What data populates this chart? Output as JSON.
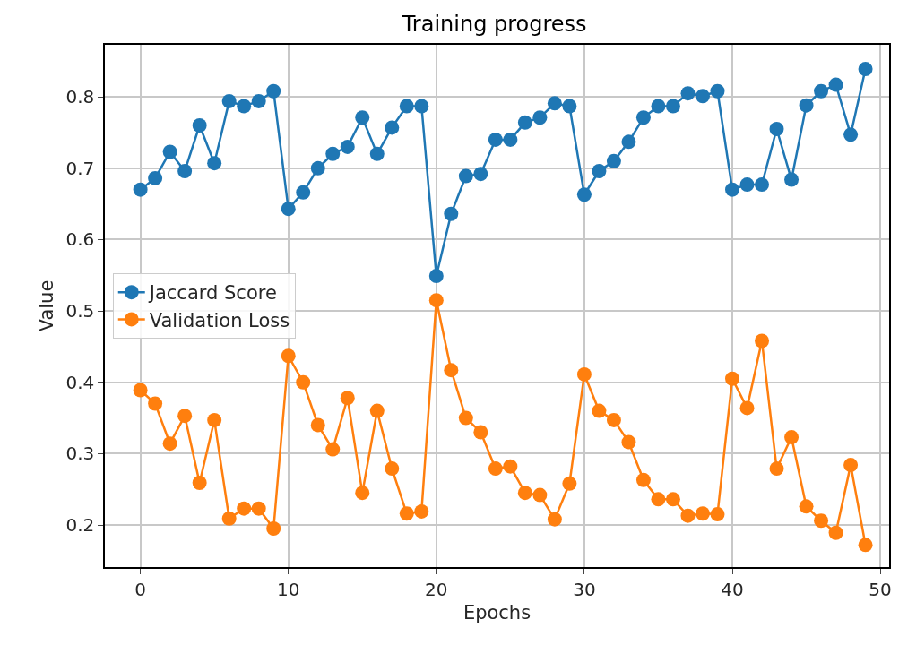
{
  "chart_data": {
    "type": "line",
    "title": "Training progress",
    "xlabel": "Epochs",
    "ylabel": "Value",
    "x": [
      0,
      1,
      2,
      3,
      4,
      5,
      6,
      7,
      8,
      9,
      10,
      11,
      12,
      13,
      14,
      15,
      16,
      17,
      18,
      19,
      20,
      21,
      22,
      23,
      24,
      25,
      26,
      27,
      28,
      29,
      30,
      31,
      32,
      33,
      34,
      35,
      36,
      37,
      38,
      39,
      40,
      41,
      42,
      43,
      44,
      45,
      46,
      47,
      48,
      49
    ],
    "series": [
      {
        "name": "Jaccard Score",
        "color": "#1f77b4",
        "values": [
          0.67,
          0.686,
          0.723,
          0.696,
          0.76,
          0.707,
          0.794,
          0.787,
          0.794,
          0.808,
          0.643,
          0.666,
          0.7,
          0.72,
          0.73,
          0.771,
          0.72,
          0.757,
          0.787,
          0.787,
          0.549,
          0.636,
          0.689,
          0.692,
          0.74,
          0.74,
          0.764,
          0.771,
          0.791,
          0.787,
          0.663,
          0.696,
          0.71,
          0.737,
          0.771,
          0.787,
          0.787,
          0.805,
          0.801,
          0.808,
          0.67,
          0.677,
          0.677,
          0.755,
          0.684,
          0.788,
          0.808,
          0.817,
          0.747,
          0.839
        ]
      },
      {
        "name": "Validation Loss",
        "color": "#ff7f0e",
        "values": [
          0.389,
          0.37,
          0.314,
          0.353,
          0.259,
          0.347,
          0.209,
          0.223,
          0.223,
          0.195,
          0.437,
          0.4,
          0.34,
          0.306,
          0.378,
          0.245,
          0.36,
          0.279,
          0.216,
          0.219,
          0.515,
          0.417,
          0.35,
          0.33,
          0.279,
          0.282,
          0.245,
          0.242,
          0.208,
          0.258,
          0.411,
          0.36,
          0.347,
          0.316,
          0.263,
          0.236,
          0.236,
          0.213,
          0.216,
          0.215,
          0.405,
          0.364,
          0.458,
          0.279,
          0.323,
          0.226,
          0.206,
          0.189,
          0.284,
          0.172
        ]
      }
    ],
    "xlim": [
      -2.4,
      50.6
    ],
    "xticks": [
      0,
      10,
      20,
      30,
      40,
      50
    ],
    "ylim": [
      0.141,
      0.873
    ],
    "yticks": [
      0.2,
      0.3,
      0.4,
      0.5,
      0.6,
      0.7,
      0.8
    ],
    "grid": true,
    "legend": "left",
    "marker": "circle",
    "line_style": "solid"
  }
}
